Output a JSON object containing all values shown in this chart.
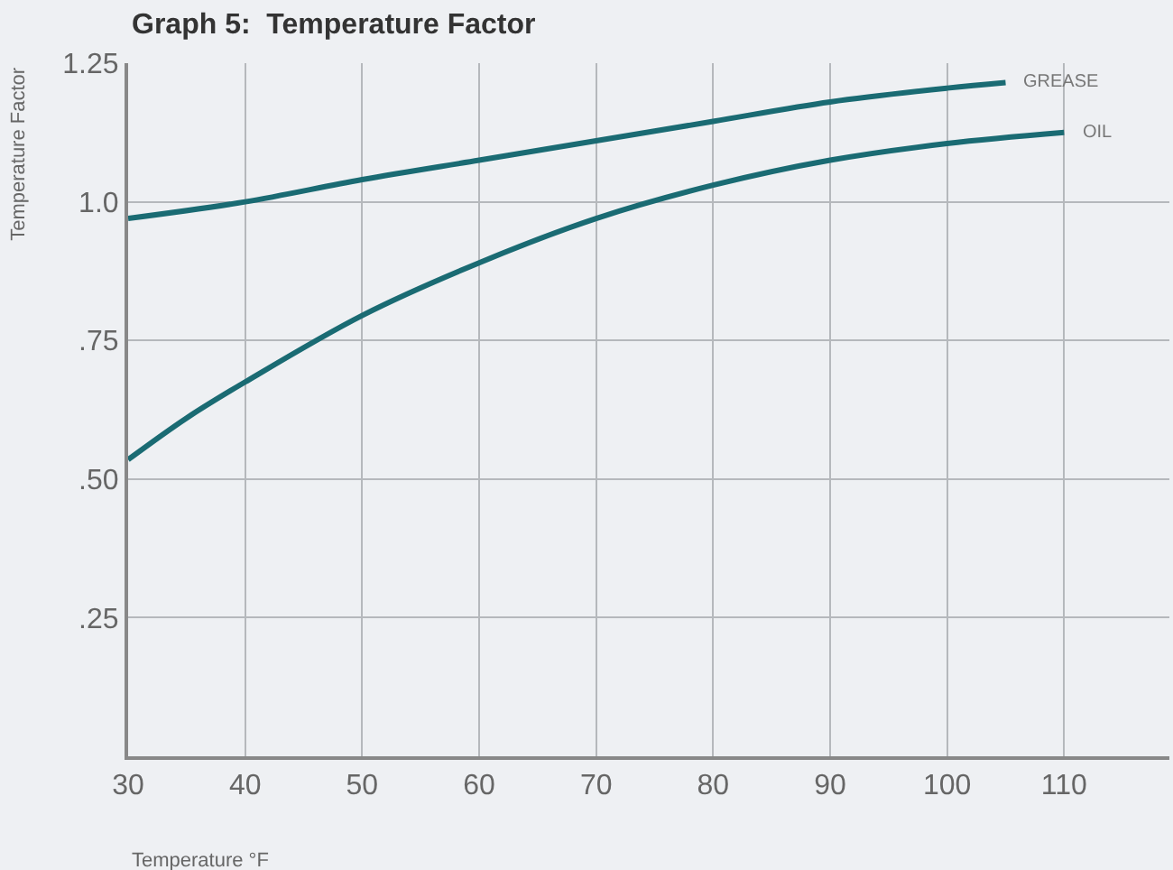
{
  "chart_data": {
    "type": "line",
    "title": "Graph 5:  Temperature Factor",
    "xlabel": "Temperature °F",
    "ylabel": "Temperature Factor",
    "xlim": [
      30,
      119
    ],
    "xticks": [
      30,
      40,
      50,
      60,
      70,
      80,
      90,
      100,
      110
    ],
    "ylim": [
      0,
      1.25
    ],
    "yticks": [
      {
        "value": 0,
        "label": null
      },
      {
        "value": 0.25,
        "label": ".25"
      },
      {
        "value": 0.5,
        "label": ".50"
      },
      {
        "value": 0.75,
        "label": ".75"
      },
      {
        "value": 1.0,
        "label": "1.0"
      },
      {
        "value": 1.25,
        "label": "1.25"
      }
    ],
    "grid": true,
    "legend": false,
    "marker": "none",
    "line_style": "solid",
    "series": [
      {
        "name": "GREASE",
        "color": "#1a6b73",
        "x": [
          30,
          40,
          50,
          60,
          70,
          80,
          90,
          100,
          105
        ],
        "values": [
          0.97,
          1.0,
          1.04,
          1.075,
          1.11,
          1.145,
          1.18,
          1.205,
          1.215
        ]
      },
      {
        "name": "OIL",
        "color": "#1a6b73",
        "x": [
          30,
          35,
          40,
          50,
          60,
          70,
          80,
          90,
          100,
          110
        ],
        "values": [
          0.535,
          0.61,
          0.675,
          0.795,
          0.89,
          0.97,
          1.03,
          1.075,
          1.105,
          1.125
        ]
      }
    ]
  }
}
